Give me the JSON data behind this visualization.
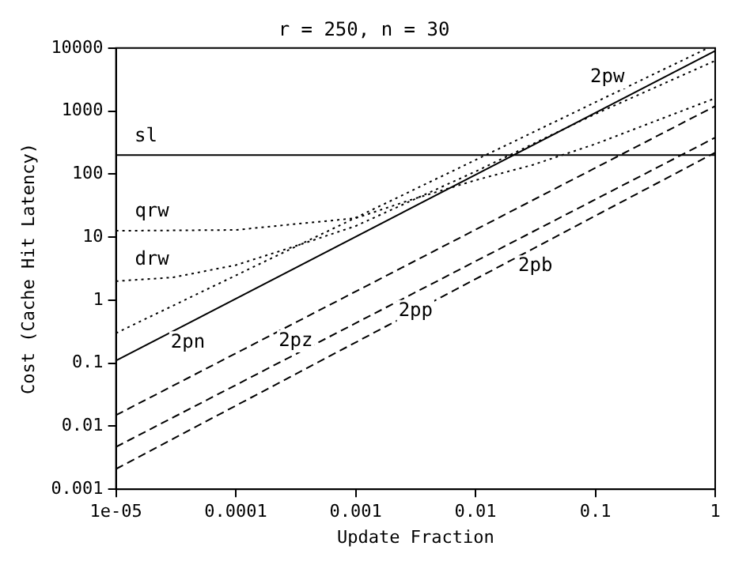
{
  "chart_data": {
    "type": "line",
    "title": "r = 250, n = 30",
    "xlabel": "Update Fraction",
    "ylabel": "Cost (Cache Hit Latency)",
    "log": "xy",
    "grid": false,
    "legend": false,
    "marker": "none",
    "xlim": [
      1e-05,
      1
    ],
    "ylim": [
      0.001,
      10000
    ],
    "xticks": [
      {
        "value": 1e-05,
        "label": "1e-05"
      },
      0.0001,
      0.001,
      0.01,
      0.1,
      1
    ],
    "yticks": [
      0.001,
      0.01,
      0.1,
      1,
      10,
      100,
      1000,
      10000
    ],
    "series": [
      {
        "name": "sl",
        "color": "#000000",
        "line_style": "solid",
        "x": [
          1e-05,
          1
        ],
        "values": [
          200,
          200
        ]
      },
      {
        "name": "2pw",
        "color": "#000000",
        "line_style": "dotted",
        "x": [
          1e-05,
          0.87
        ],
        "values": [
          0.3,
          10000
        ]
      },
      {
        "name": "2pn",
        "color": "#000000",
        "line_style": "solid",
        "x": [
          1e-05,
          1
        ],
        "values": [
          0.11,
          9000
        ]
      },
      {
        "name": "drw",
        "color": "#000000",
        "line_style": "dotted",
        "x": [
          1e-05,
          3e-05,
          0.0001,
          0.0003,
          0.001,
          0.01,
          0.1,
          1
        ],
        "values": [
          2,
          2.3,
          3.6,
          7,
          15,
          110,
          900,
          6300
        ]
      },
      {
        "name": "qrw",
        "color": "#000000",
        "line_style": "dotted",
        "x": [
          1e-05,
          0.0001,
          0.0003,
          0.001,
          0.003,
          0.01,
          0.03,
          0.1,
          1
        ],
        "values": [
          12.6,
          13,
          16,
          20,
          40,
          80,
          140,
          300,
          1600
        ]
      },
      {
        "name": "2pz",
        "color": "#000000",
        "line_style": "dashed",
        "x": [
          1e-05,
          1
        ],
        "values": [
          0.015,
          1200
        ]
      },
      {
        "name": "2pp",
        "color": "#000000",
        "line_style": "dashed",
        "x": [
          1e-05,
          1
        ],
        "values": [
          0.0047,
          380
        ]
      },
      {
        "name": "2pb",
        "color": "#000000",
        "line_style": "dashed",
        "x": [
          1e-05,
          1
        ],
        "values": [
          0.0021,
          220
        ]
      }
    ]
  }
}
